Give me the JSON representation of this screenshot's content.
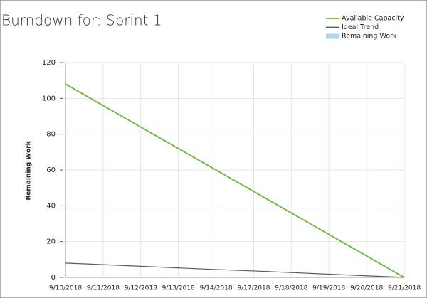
{
  "chart_data": {
    "type": "line",
    "title": "Burndown for: Sprint 1",
    "y_label": "Remaining Work",
    "categories": [
      "9/10/2018",
      "9/11/2018",
      "9/12/2018",
      "9/13/2018",
      "9/14/2018",
      "9/17/2018",
      "9/18/2018",
      "9/19/2018",
      "9/20/2018",
      "9/21/2018"
    ],
    "series": [
      {
        "name": "Available Capacity",
        "color": "#6db33f",
        "values": [
          108,
          96,
          84,
          72,
          60,
          48,
          36,
          24,
          12,
          0
        ]
      },
      {
        "name": "Ideal Trend",
        "color": "#5a5a5a",
        "values": [
          8,
          7.1,
          6.2,
          5.3,
          4.4,
          3.6,
          2.7,
          1.8,
          0.9,
          0
        ]
      },
      {
        "name": "Remaining Work",
        "color": "#b3d4ef",
        "values": [
          null,
          null,
          null,
          null,
          null,
          null,
          null,
          null,
          null,
          null
        ]
      }
    ],
    "ylim": [
      0,
      120
    ],
    "yticks": [
      0,
      20,
      40,
      60,
      80,
      100,
      120
    ],
    "grid": true,
    "legend": "top-right"
  }
}
